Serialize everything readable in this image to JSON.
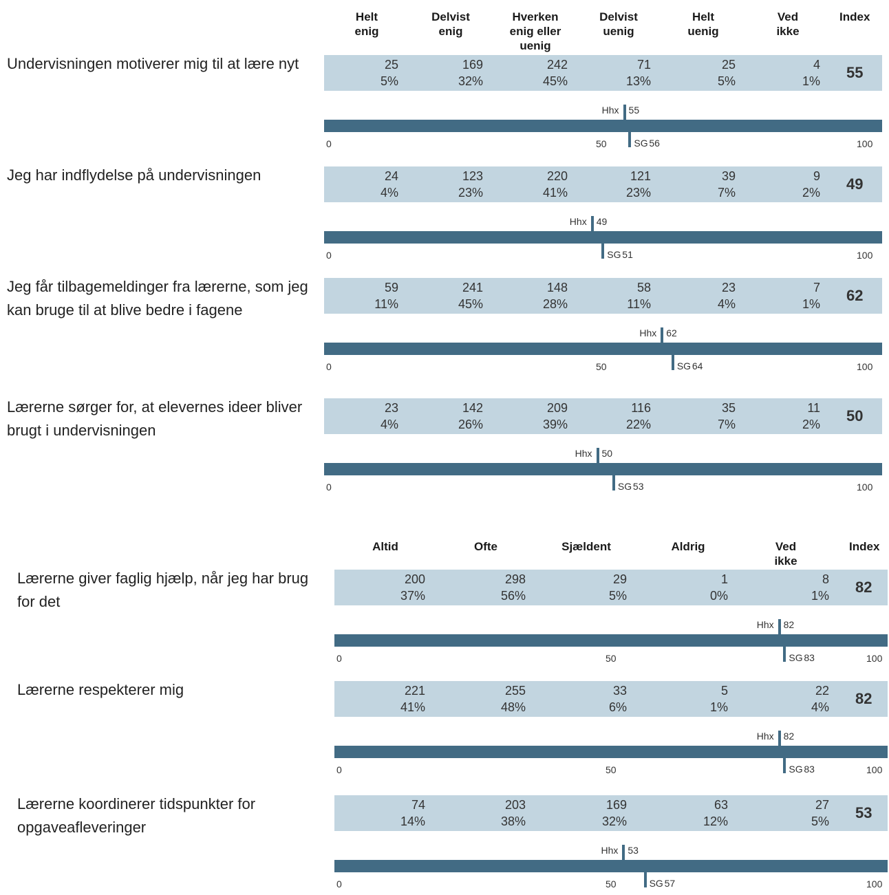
{
  "section1": {
    "headers": [
      "Helt\nenig",
      "Delvist\nenig",
      "Hverken\nenig eller\nuenig",
      "Delvist\nuenig",
      "Helt\nuenig",
      "Ved\nikke"
    ],
    "index_header": "Index",
    "questions": [
      {
        "label": "Undervisningen motiverer mig til at lære nyt",
        "counts": [
          "25",
          "169",
          "242",
          "71",
          "25",
          "4"
        ],
        "pcts": [
          "5%",
          "32%",
          "45%",
          "13%",
          "5%",
          "1%"
        ],
        "index": "55",
        "hhx_label": "Hhx",
        "hhx_value": 55,
        "hhx_text": "55",
        "sg_label": "SG",
        "sg_value": 56,
        "sg_text": "56",
        "show_mid": true
      },
      {
        "label": "Jeg har indflydelse på undervisningen",
        "counts": [
          "24",
          "123",
          "220",
          "121",
          "39",
          "9"
        ],
        "pcts": [
          "4%",
          "23%",
          "41%",
          "23%",
          "7%",
          "2%"
        ],
        "index": "49",
        "hhx_label": "Hhx",
        "hhx_value": 49,
        "hhx_text": "49",
        "sg_label": "SG",
        "sg_value": 51,
        "sg_text": "51",
        "show_mid": false
      },
      {
        "label": "Jeg får tilbagemeldinger fra lærerne, som jeg kan bruge til at blive bedre i fagene",
        "counts": [
          "59",
          "241",
          "148",
          "58",
          "23",
          "7"
        ],
        "pcts": [
          "11%",
          "45%",
          "28%",
          "11%",
          "4%",
          "1%"
        ],
        "index": "62",
        "hhx_label": "Hhx",
        "hhx_value": 62,
        "hhx_text": "62",
        "sg_label": "SG",
        "sg_value": 64,
        "sg_text": "64",
        "show_mid": true
      },
      {
        "label": "Lærerne sørger for, at elevernes ideer bliver brugt i undervisningen",
        "counts": [
          "23",
          "142",
          "209",
          "116",
          "35",
          "11"
        ],
        "pcts": [
          "4%",
          "26%",
          "39%",
          "22%",
          "7%",
          "2%"
        ],
        "index": "50",
        "hhx_label": "Hhx",
        "hhx_value": 50,
        "hhx_text": "50",
        "sg_label": "SG",
        "sg_value": 53,
        "sg_text": "53",
        "show_mid": false
      }
    ]
  },
  "section2": {
    "headers": [
      "Altid",
      "Ofte",
      "Sjældent",
      "Aldrig",
      "Ved\nikke"
    ],
    "index_header": "Index",
    "questions": [
      {
        "label": "Lærerne giver faglig hjælp, når jeg har brug for det",
        "counts": [
          "200",
          "298",
          "29",
          "1",
          "8"
        ],
        "pcts": [
          "37%",
          "56%",
          "5%",
          "0%",
          "1%"
        ],
        "index": "82",
        "hhx_label": "Hhx",
        "hhx_value": 82,
        "hhx_text": "82",
        "sg_label": "SG",
        "sg_value": 83,
        "sg_text": "83",
        "show_mid": true
      },
      {
        "label": "Lærerne respekterer mig",
        "counts": [
          "221",
          "255",
          "33",
          "5",
          "22"
        ],
        "pcts": [
          "41%",
          "48%",
          "6%",
          "1%",
          "4%"
        ],
        "index": "82",
        "hhx_label": "Hhx",
        "hhx_value": 82,
        "hhx_text": "82",
        "sg_label": "SG",
        "sg_value": 83,
        "sg_text": "83",
        "show_mid": true
      },
      {
        "label": "Lærerne koordinerer tidspunkter for opgaveafleveringer",
        "counts": [
          "74",
          "203",
          "169",
          "63",
          "27"
        ],
        "pcts": [
          "14%",
          "38%",
          "32%",
          "12%",
          "5%"
        ],
        "index": "53",
        "hhx_label": "Hhx",
        "hhx_value": 53,
        "hhx_text": "53",
        "sg_label": "SG",
        "sg_value": 57,
        "sg_text": "57",
        "show_mid": true
      }
    ]
  },
  "scale": {
    "min": "0",
    "mid": "50",
    "max": "100"
  },
  "colors": {
    "band": "#c2d5e0",
    "track": "#426b84"
  },
  "chart_data": [
    {
      "type": "table",
      "columns": [
        "Helt enig",
        "Delvist enig",
        "Hverken enig eller uenig",
        "Delvist uenig",
        "Helt uenig",
        "Ved ikke",
        "Index"
      ],
      "rows": [
        {
          "question": "Undervisningen motiverer mig til at lære nyt",
          "counts": [
            25,
            169,
            242,
            71,
            25,
            4
          ],
          "percents": [
            5,
            32,
            45,
            13,
            5,
            1
          ],
          "index": 55,
          "hhx": 55,
          "sg": 56
        },
        {
          "question": "Jeg har indflydelse på undervisningen",
          "counts": [
            24,
            123,
            220,
            121,
            39,
            9
          ],
          "percents": [
            4,
            23,
            41,
            23,
            7,
            2
          ],
          "index": 49,
          "hhx": 49,
          "sg": 51
        },
        {
          "question": "Jeg får tilbagemeldinger fra lærerne, som jeg kan bruge til at blive bedre i fagene",
          "counts": [
            59,
            241,
            148,
            58,
            23,
            7
          ],
          "percents": [
            11,
            45,
            28,
            11,
            4,
            1
          ],
          "index": 62,
          "hhx": 62,
          "sg": 64
        },
        {
          "question": "Lærerne sørger for, at elevernes ideer bliver brugt i undervisningen",
          "counts": [
            23,
            142,
            209,
            116,
            35,
            11
          ],
          "percents": [
            4,
            26,
            39,
            22,
            7,
            2
          ],
          "index": 50,
          "hhx": 50,
          "sg": 53
        }
      ],
      "scale": [
        0,
        100
      ]
    },
    {
      "type": "table",
      "columns": [
        "Altid",
        "Ofte",
        "Sjældent",
        "Aldrig",
        "Ved ikke",
        "Index"
      ],
      "rows": [
        {
          "question": "Lærerne giver faglig hjælp, når jeg har brug for det",
          "counts": [
            200,
            298,
            29,
            1,
            8
          ],
          "percents": [
            37,
            56,
            5,
            0,
            1
          ],
          "index": 82,
          "hhx": 82,
          "sg": 83
        },
        {
          "question": "Lærerne respekterer mig",
          "counts": [
            221,
            255,
            33,
            5,
            22
          ],
          "percents": [
            41,
            48,
            6,
            1,
            4
          ],
          "index": 82,
          "hhx": 82,
          "sg": 83
        },
        {
          "question": "Lærerne koordinerer tidspunkter for opgaveafleveringer",
          "counts": [
            74,
            203,
            169,
            63,
            27
          ],
          "percents": [
            14,
            38,
            32,
            12,
            5
          ],
          "index": 53,
          "hhx": 53,
          "sg": 57
        }
      ],
      "scale": [
        0,
        100
      ]
    }
  ]
}
